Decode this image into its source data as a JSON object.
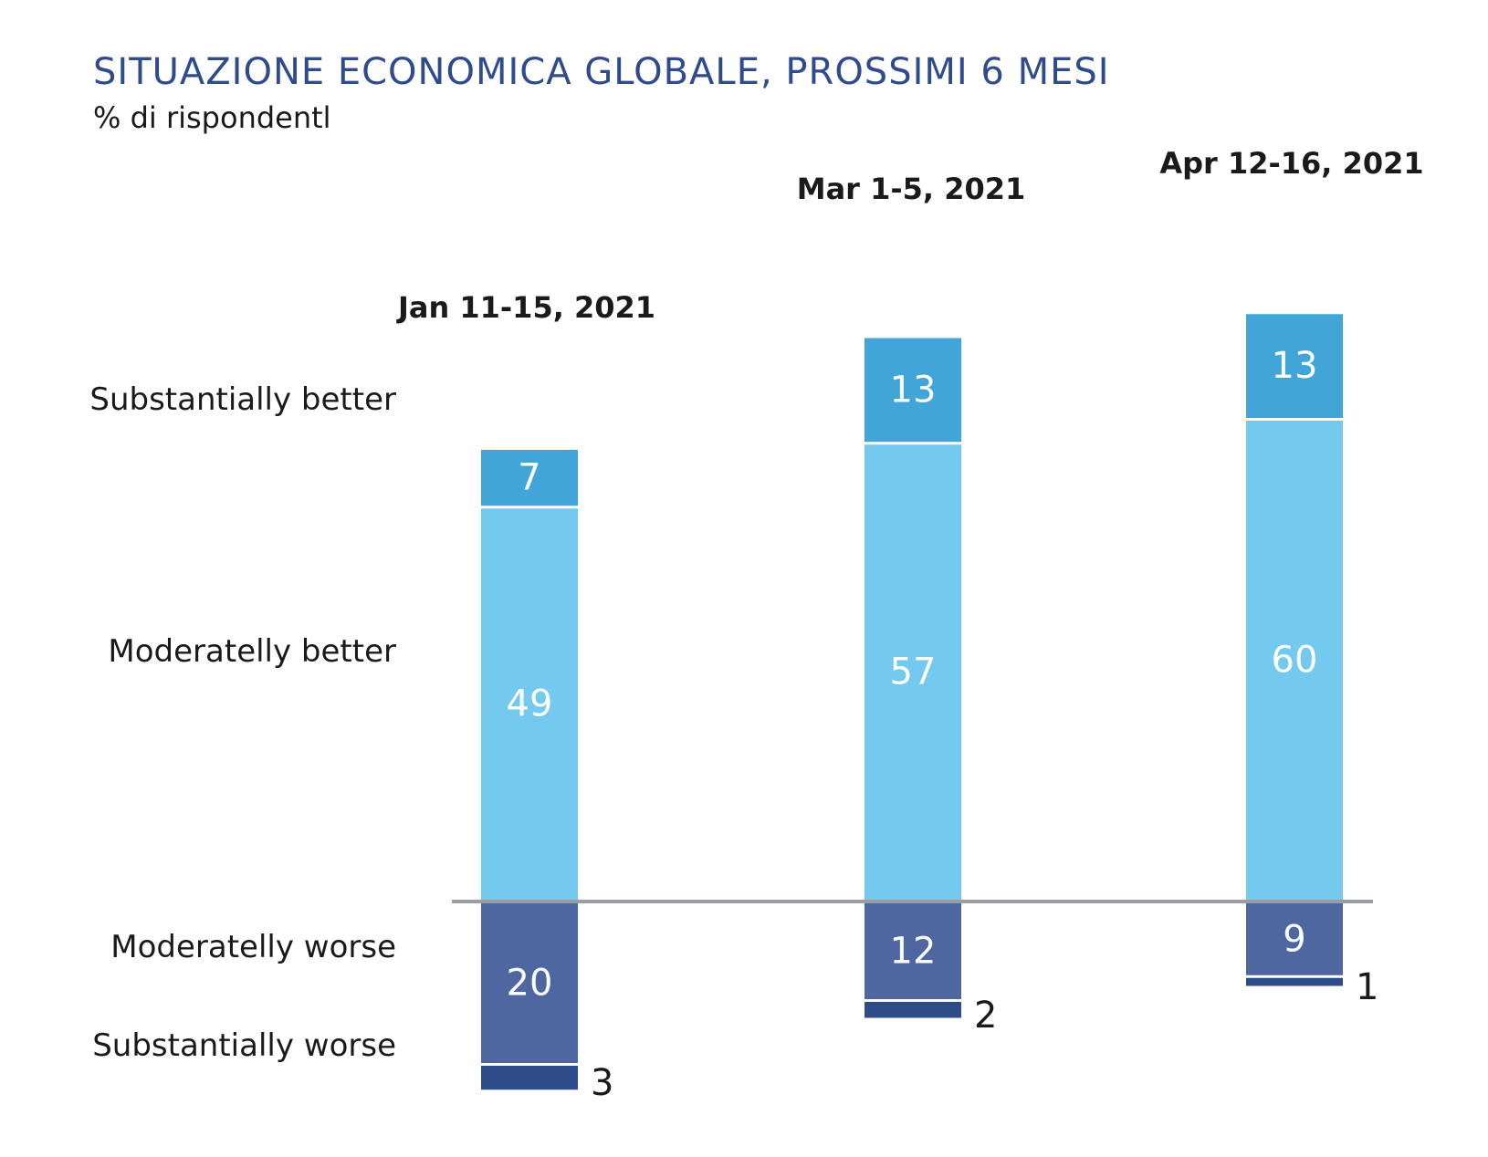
{
  "title": "SITUAZIONE ECONOMICA GLOBALE, PROSSIMI 6 MESI",
  "subtitle": "% di rispondentl",
  "colors": {
    "substantially_better": "#41a5d8",
    "moderately_better": "#73caee",
    "moderately_worse": "#4e67a0",
    "substantially_worse": "#2d4c88",
    "baseline": "#9a9ea3",
    "inside_label": "#ffffff",
    "outside_label": "#1a1a1a"
  },
  "chart_data": {
    "type": "bar",
    "stacked": true,
    "diverging": true,
    "categories": [
      "Jan 11-15, 2021",
      "Mar 1-5, 2021",
      "Apr 12-16, 2021"
    ],
    "series": [
      {
        "name": "Substantially better",
        "key": "substantially_better",
        "direction": "up",
        "values": [
          7,
          13,
          13
        ]
      },
      {
        "name": "Moderatelly better",
        "key": "moderately_better",
        "direction": "up",
        "values": [
          49,
          57,
          60
        ]
      },
      {
        "name": "Moderatelly worse",
        "key": "moderately_worse",
        "direction": "down",
        "values": [
          20,
          12,
          9
        ]
      },
      {
        "name": "Substantially worse",
        "key": "substantially_worse",
        "direction": "down",
        "values": [
          3,
          2,
          1
        ]
      }
    ],
    "row_labels": [
      "Substantially better",
      "Moderatelly better",
      "Moderatelly worse",
      "Substantially worse"
    ]
  }
}
